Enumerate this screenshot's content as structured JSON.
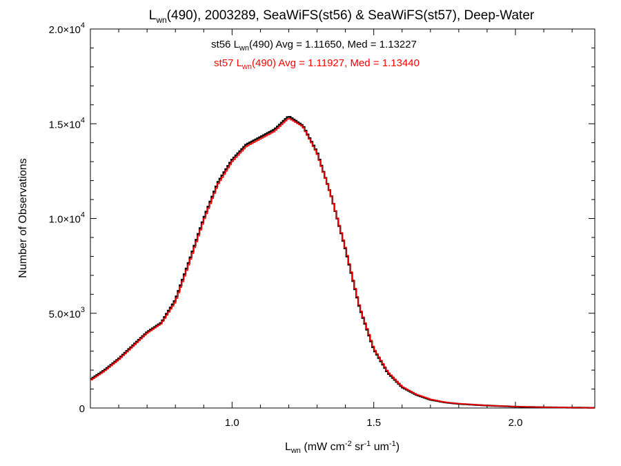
{
  "chart_data": {
    "type": "line",
    "title": {
      "pre": "L",
      "sub": "wn",
      "post": "(490), 2003289, SeaWiFS(st56) & SeaWiFS(st57), Deep-Water"
    },
    "xlabel": {
      "pre": "L",
      "sub": "wn",
      "units_open": " (mW cm",
      "sup1": "-2",
      "mid1": " sr",
      "sup2": "-1",
      "mid2": " um",
      "sup3": "-1",
      "close": ")"
    },
    "ylabel": "Number of Observations",
    "xlim": [
      0.5,
      2.28
    ],
    "ylim": [
      0,
      20000
    ],
    "xticks": [
      {
        "value": 1.0,
        "label": "1.0"
      },
      {
        "value": 1.5,
        "label": "1.5"
      },
      {
        "value": 2.0,
        "label": "2.0"
      }
    ],
    "yticks": [
      {
        "value": 0,
        "mant": "0",
        "exp": ""
      },
      {
        "value": 5000,
        "mant": "5.0×10",
        "exp": "3"
      },
      {
        "value": 10000,
        "mant": "1.0×10",
        "exp": "4"
      },
      {
        "value": 15000,
        "mant": "1.5×10",
        "exp": "4"
      },
      {
        "value": 20000,
        "mant": "2.0×10",
        "exp": "4"
      }
    ],
    "annotations": [
      {
        "pre": "st56 L",
        "sub": "wn",
        "post": "(490) Avg = 1.11650, Med = 1.13227",
        "color": "#000000"
      },
      {
        "pre": "st57 L",
        "sub": "wn",
        "post": "(490) Avg = 1.11927, Med = 1.13440",
        "color": "#ff0000"
      }
    ],
    "series": [
      {
        "color": "#000000",
        "x": [
          0.5,
          0.55,
          0.6,
          0.65,
          0.7,
          0.75,
          0.8,
          0.85,
          0.9,
          0.95,
          1.0,
          1.05,
          1.1,
          1.15,
          1.2,
          1.25,
          1.3,
          1.35,
          1.4,
          1.45,
          1.5,
          1.55,
          1.6,
          1.65,
          1.7,
          1.75,
          1.8,
          1.9,
          2.0,
          2.1,
          2.2,
          2.28
        ],
        "y": [
          1500,
          2000,
          2600,
          3300,
          4000,
          4500,
          5700,
          7800,
          10000,
          11900,
          13100,
          13900,
          14300,
          14700,
          15400,
          14900,
          13500,
          11200,
          8400,
          5300,
          3100,
          1850,
          1100,
          700,
          440,
          300,
          220,
          130,
          70,
          40,
          20,
          10
        ]
      },
      {
        "color": "#ff0000",
        "x": [
          0.5,
          0.55,
          0.6,
          0.65,
          0.7,
          0.75,
          0.8,
          0.85,
          0.9,
          0.95,
          1.0,
          1.05,
          1.1,
          1.15,
          1.2,
          1.25,
          1.3,
          1.35,
          1.4,
          1.45,
          1.5,
          1.55,
          1.6,
          1.65,
          1.7,
          1.75,
          1.8,
          1.9,
          2.0,
          2.1,
          2.2,
          2.28
        ],
        "y": [
          1450,
          1950,
          2550,
          3250,
          3950,
          4450,
          5600,
          7700,
          9900,
          11800,
          13000,
          13800,
          14200,
          14600,
          15300,
          14850,
          13450,
          11200,
          8450,
          5350,
          3150,
          1900,
          1130,
          720,
          460,
          310,
          230,
          135,
          75,
          42,
          22,
          12
        ]
      }
    ]
  }
}
